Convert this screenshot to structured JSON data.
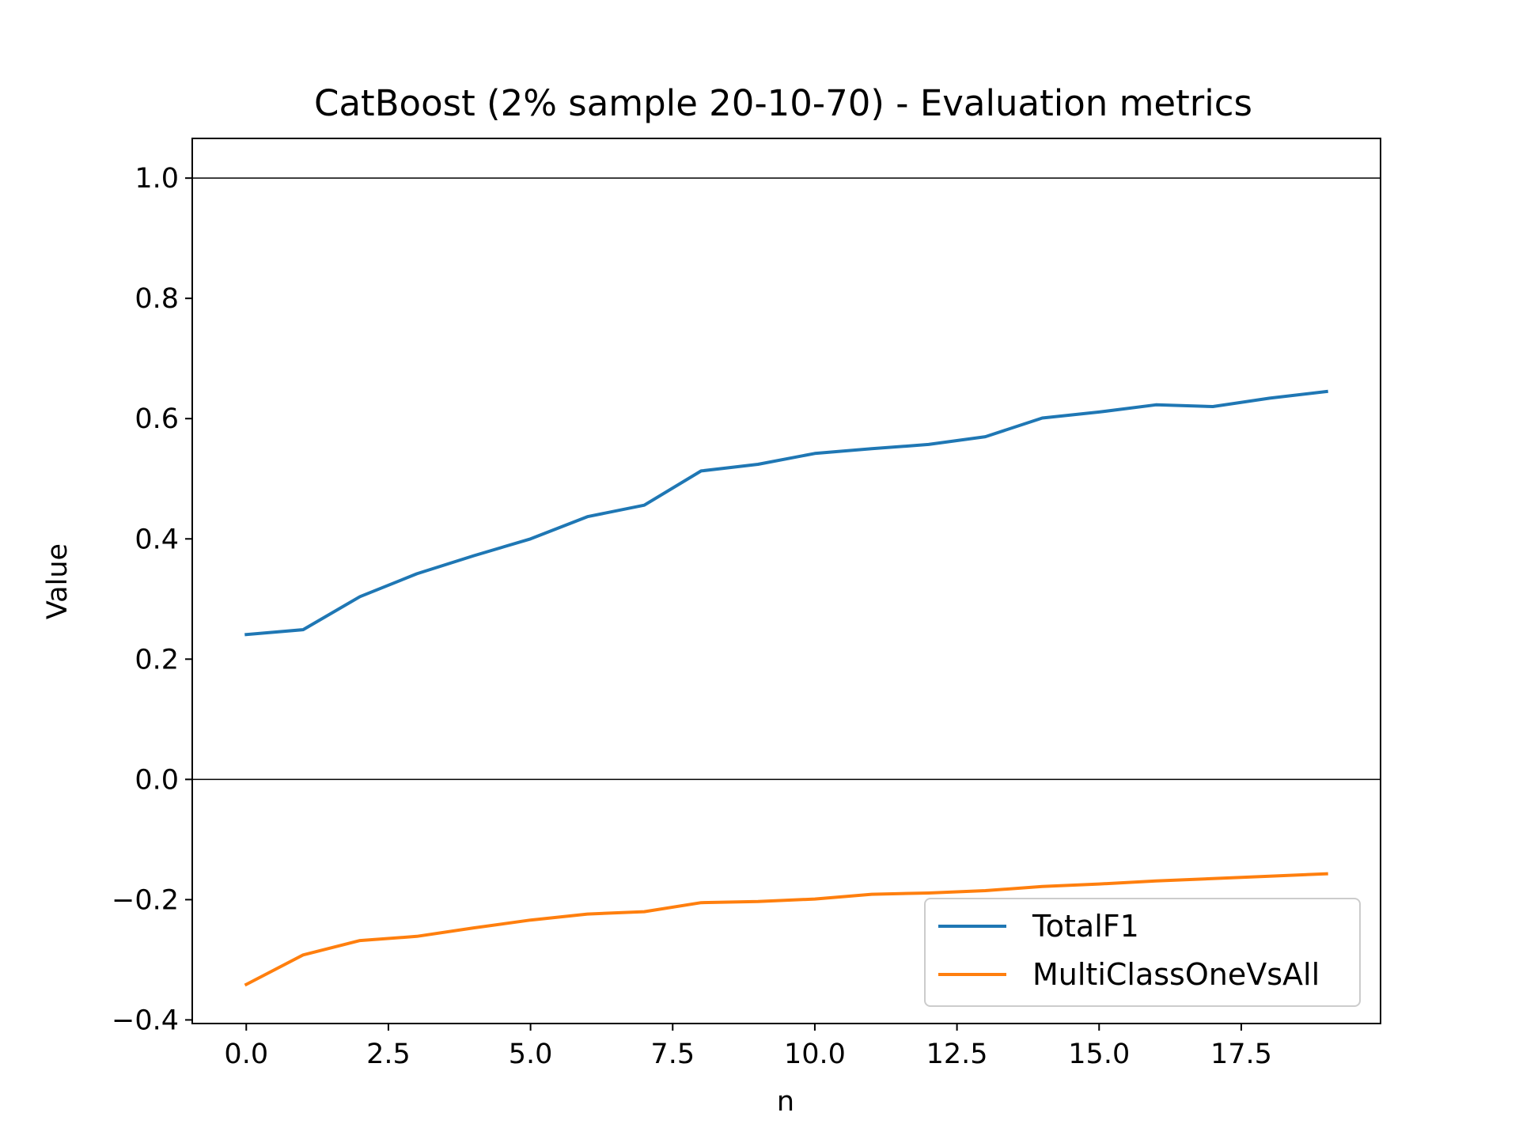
{
  "chart_data": {
    "type": "line",
    "title": "CatBoost (2% sample 20-10-70) - Evaluation metrics",
    "xlabel": "n",
    "ylabel": "Value",
    "x": [
      0,
      1,
      2,
      3,
      4,
      5,
      6,
      7,
      8,
      9,
      10,
      11,
      12,
      13,
      14,
      15,
      16,
      17,
      18,
      19
    ],
    "series": [
      {
        "name": "TotalF1",
        "color": "#1f77b4",
        "values": [
          0.241,
          0.249,
          0.304,
          0.342,
          0.372,
          0.4,
          0.437,
          0.456,
          0.513,
          0.524,
          0.542,
          0.55,
          0.557,
          0.57,
          0.601,
          0.611,
          0.623,
          0.62,
          0.634,
          0.645
        ]
      },
      {
        "name": "MultiClassOneVsAll",
        "color": "#ff7f0e",
        "values": [
          -0.341,
          -0.292,
          -0.268,
          -0.261,
          -0.247,
          -0.234,
          -0.224,
          -0.22,
          -0.205,
          -0.203,
          -0.199,
          -0.191,
          -0.189,
          -0.185,
          -0.178,
          -0.174,
          -0.169,
          -0.165,
          -0.161,
          -0.157
        ]
      }
    ],
    "xlim": [
      -0.95,
      19.95
    ],
    "ylim": [
      -0.406,
      1.066
    ],
    "xticks": [
      0.0,
      2.5,
      5.0,
      7.5,
      10.0,
      12.5,
      15.0,
      17.5
    ],
    "xtick_labels": [
      "0.0",
      "2.5",
      "5.0",
      "7.5",
      "10.0",
      "12.5",
      "15.0",
      "17.5"
    ],
    "yticks": [
      -0.4,
      -0.2,
      0.0,
      0.2,
      0.4,
      0.6,
      0.8,
      1.0
    ],
    "ytick_labels": [
      "−0.4",
      "−0.2",
      "0.0",
      "0.2",
      "0.4",
      "0.6",
      "0.8",
      "1.0"
    ],
    "reference_lines": [
      0.0,
      1.0
    ],
    "grid": false,
    "legend_position": "lower-right"
  }
}
